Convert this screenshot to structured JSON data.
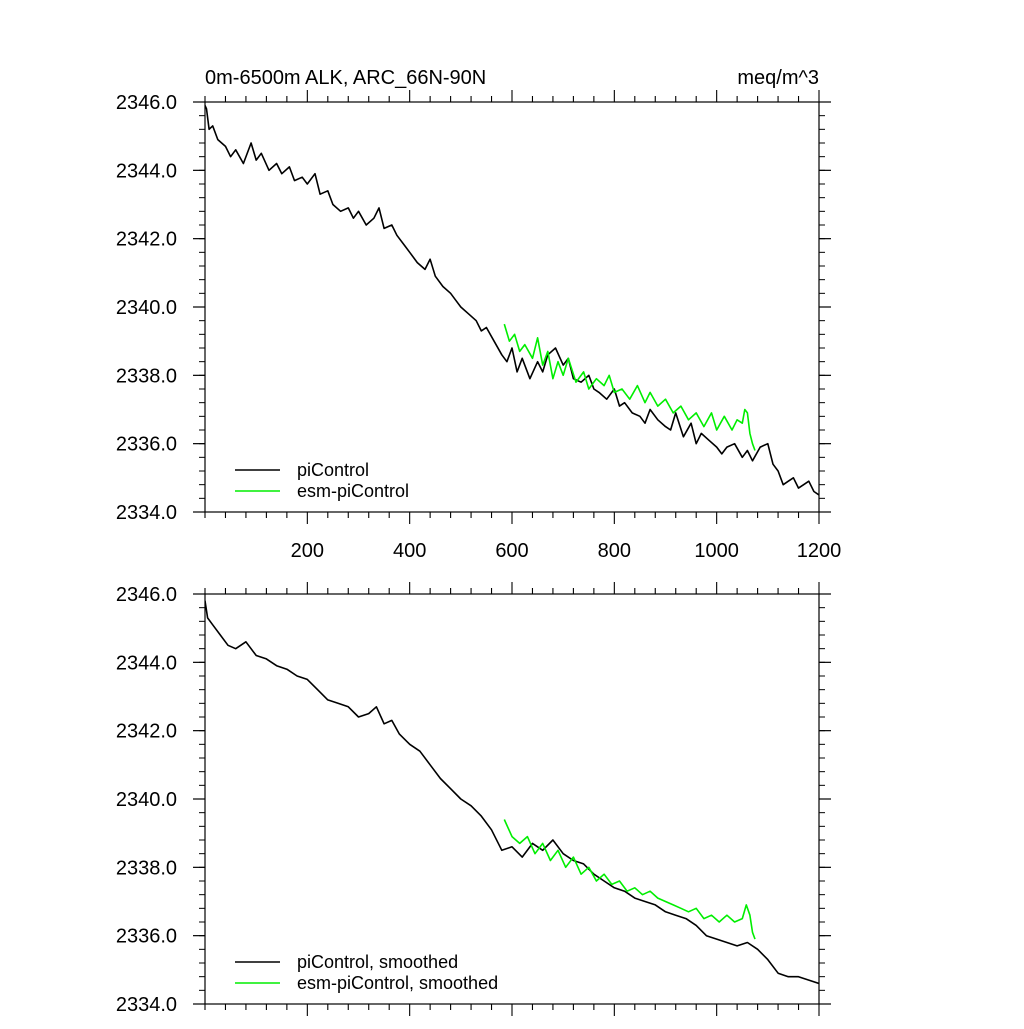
{
  "colors": {
    "picontrol": "#000000",
    "esm": "#00ee00"
  },
  "chart_data": [
    {
      "type": "line",
      "panel": "top",
      "title": "0m-6500m ALK, ARC_66N-90N",
      "units": "meq/m^3",
      "xlim": [
        0,
        1200
      ],
      "ylim": [
        2334.0,
        2346.0
      ],
      "x_ticks": [
        200,
        400,
        600,
        800,
        1000,
        1200
      ],
      "x_tick_labels": [
        "200",
        "400",
        "600",
        "800",
        "1000",
        "1200"
      ],
      "y_ticks": [
        2334.0,
        2336.0,
        2338.0,
        2340.0,
        2342.0,
        2344.0,
        2346.0
      ],
      "y_tick_labels": [
        "2334.0",
        "2336.0",
        "2338.0",
        "2340.0",
        "2342.0",
        "2344.0",
        "2346.0"
      ],
      "legend_position": "bottom-left",
      "series": [
        {
          "name": "piControl",
          "color_key": "picontrol",
          "x": [
            0,
            3,
            8,
            15,
            25,
            40,
            50,
            60,
            75,
            90,
            100,
            110,
            125,
            140,
            150,
            165,
            175,
            190,
            200,
            215,
            225,
            240,
            250,
            265,
            280,
            290,
            300,
            315,
            330,
            340,
            350,
            365,
            375,
            390,
            400,
            415,
            430,
            440,
            450,
            465,
            480,
            490,
            500,
            515,
            530,
            540,
            550,
            565,
            580,
            590,
            600,
            610,
            620,
            635,
            650,
            660,
            670,
            685,
            700,
            710,
            720,
            735,
            750,
            760,
            770,
            785,
            800,
            810,
            820,
            835,
            850,
            860,
            870,
            885,
            900,
            910,
            920,
            935,
            950,
            960,
            970,
            985,
            1000,
            1010,
            1020,
            1035,
            1050,
            1060,
            1070,
            1085,
            1100,
            1110,
            1120,
            1130,
            1140,
            1150,
            1160,
            1170,
            1180,
            1190,
            1200
          ],
          "y": [
            2345.9,
            2345.8,
            2345.2,
            2345.3,
            2344.9,
            2344.7,
            2344.4,
            2344.6,
            2344.2,
            2344.8,
            2344.3,
            2344.5,
            2344.0,
            2344.2,
            2343.9,
            2344.1,
            2343.7,
            2343.8,
            2343.6,
            2343.9,
            2343.3,
            2343.4,
            2343.0,
            2342.8,
            2342.9,
            2342.6,
            2342.8,
            2342.4,
            2342.6,
            2342.9,
            2342.3,
            2342.4,
            2342.1,
            2341.8,
            2341.6,
            2341.3,
            2341.1,
            2341.4,
            2340.9,
            2340.6,
            2340.4,
            2340.2,
            2340.0,
            2339.8,
            2339.6,
            2339.3,
            2339.4,
            2339.0,
            2338.6,
            2338.4,
            2338.8,
            2338.1,
            2338.5,
            2337.9,
            2338.4,
            2338.1,
            2338.6,
            2338.8,
            2338.3,
            2338.5,
            2337.9,
            2337.8,
            2338.0,
            2337.6,
            2337.5,
            2337.3,
            2337.6,
            2337.1,
            2337.2,
            2336.9,
            2336.8,
            2336.6,
            2337.0,
            2336.7,
            2336.5,
            2336.4,
            2336.9,
            2336.2,
            2336.6,
            2336.0,
            2336.3,
            2336.1,
            2335.9,
            2335.7,
            2335.9,
            2336.0,
            2335.6,
            2335.8,
            2335.5,
            2335.9,
            2336.0,
            2335.4,
            2335.2,
            2334.8,
            2334.9,
            2335.0,
            2334.7,
            2334.8,
            2334.9,
            2334.6,
            2334.5
          ]
        },
        {
          "name": "esm-piControl",
          "color_key": "esm",
          "x": [
            585,
            595,
            605,
            615,
            625,
            640,
            650,
            660,
            670,
            680,
            690,
            700,
            710,
            725,
            740,
            750,
            765,
            780,
            790,
            800,
            815,
            830,
            845,
            860,
            870,
            885,
            900,
            915,
            930,
            945,
            960,
            975,
            990,
            1000,
            1015,
            1030,
            1040,
            1050,
            1055,
            1060,
            1065,
            1070,
            1075
          ],
          "y": [
            2339.5,
            2339.0,
            2339.2,
            2338.7,
            2338.9,
            2338.5,
            2339.1,
            2338.3,
            2338.7,
            2337.9,
            2338.4,
            2338.0,
            2338.5,
            2337.8,
            2338.1,
            2337.6,
            2337.9,
            2337.7,
            2338.0,
            2337.5,
            2337.6,
            2337.3,
            2337.7,
            2337.2,
            2337.5,
            2337.1,
            2337.3,
            2336.9,
            2337.1,
            2336.7,
            2336.9,
            2336.5,
            2336.9,
            2336.4,
            2336.8,
            2336.4,
            2336.7,
            2336.6,
            2337.0,
            2336.9,
            2336.3,
            2336.0,
            2335.8
          ]
        }
      ]
    },
    {
      "type": "line",
      "panel": "bottom",
      "title": "",
      "xlim": [
        0,
        1200
      ],
      "ylim": [
        2334.0,
        2346.0
      ],
      "y_ticks": [
        2334.0,
        2336.0,
        2338.0,
        2340.0,
        2342.0,
        2344.0,
        2346.0
      ],
      "y_tick_labels": [
        "2334.0",
        "2336.0",
        "2338.0",
        "2340.0",
        "2342.0",
        "2344.0",
        "2346.0"
      ],
      "legend_position": "bottom-left",
      "series": [
        {
          "name": "piControl, smoothed",
          "color_key": "picontrol",
          "x": [
            0,
            5,
            15,
            30,
            45,
            60,
            80,
            100,
            120,
            140,
            160,
            180,
            200,
            220,
            240,
            260,
            280,
            300,
            320,
            335,
            350,
            365,
            380,
            400,
            420,
            440,
            460,
            480,
            500,
            520,
            540,
            560,
            580,
            600,
            620,
            640,
            660,
            680,
            700,
            720,
            740,
            760,
            780,
            800,
            820,
            840,
            860,
            880,
            900,
            920,
            940,
            960,
            980,
            1000,
            1020,
            1040,
            1060,
            1080,
            1100,
            1120,
            1140,
            1160,
            1180,
            1200
          ],
          "y": [
            2345.8,
            2345.3,
            2345.1,
            2344.8,
            2344.5,
            2344.4,
            2344.6,
            2344.2,
            2344.1,
            2343.9,
            2343.8,
            2343.6,
            2343.5,
            2343.2,
            2342.9,
            2342.8,
            2342.7,
            2342.4,
            2342.5,
            2342.7,
            2342.2,
            2342.3,
            2341.9,
            2341.6,
            2341.4,
            2341.0,
            2340.6,
            2340.3,
            2340.0,
            2339.8,
            2339.5,
            2339.1,
            2338.5,
            2338.6,
            2338.3,
            2338.7,
            2338.5,
            2338.8,
            2338.4,
            2338.2,
            2338.1,
            2337.8,
            2337.6,
            2337.4,
            2337.3,
            2337.1,
            2337.0,
            2336.9,
            2336.7,
            2336.6,
            2336.5,
            2336.3,
            2336.0,
            2335.9,
            2335.8,
            2335.7,
            2335.8,
            2335.6,
            2335.3,
            2334.9,
            2334.8,
            2334.8,
            2334.7,
            2334.6
          ]
        },
        {
          "name": "esm-piControl, smoothed",
          "color_key": "esm",
          "x": [
            585,
            600,
            615,
            630,
            645,
            660,
            675,
            690,
            705,
            720,
            735,
            750,
            765,
            780,
            795,
            810,
            825,
            840,
            855,
            870,
            885,
            900,
            915,
            930,
            945,
            960,
            975,
            990,
            1005,
            1020,
            1035,
            1050,
            1058,
            1065,
            1070,
            1075
          ],
          "y": [
            2339.4,
            2338.9,
            2338.7,
            2338.9,
            2338.4,
            2338.7,
            2338.2,
            2338.5,
            2338.0,
            2338.3,
            2337.8,
            2338.0,
            2337.6,
            2337.8,
            2337.5,
            2337.6,
            2337.3,
            2337.4,
            2337.2,
            2337.3,
            2337.1,
            2337.0,
            2336.9,
            2336.8,
            2336.7,
            2336.8,
            2336.5,
            2336.6,
            2336.4,
            2336.6,
            2336.4,
            2336.5,
            2336.9,
            2336.6,
            2336.1,
            2335.9
          ]
        }
      ]
    }
  ]
}
